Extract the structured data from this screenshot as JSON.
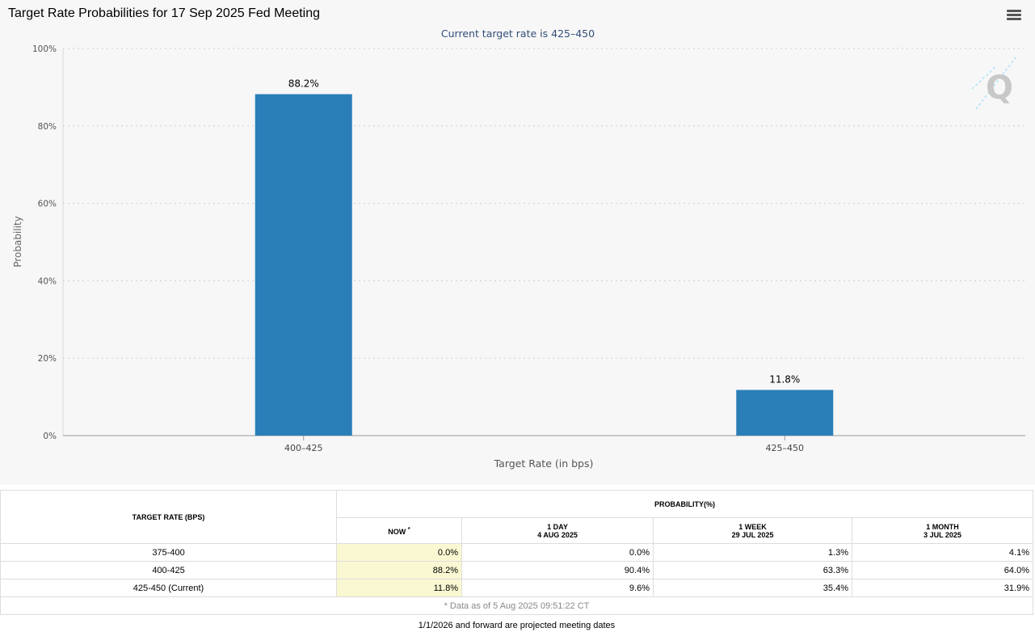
{
  "chart_title": "Target Rate Probabilities for 17 Sep 2025 Fed Meeting",
  "chart_data": {
    "type": "bar",
    "title": "Target Rate Probabilities for 17 Sep 2025 Fed Meeting",
    "subtitle": "Current target rate is 425–450",
    "categories": [
      "400–425",
      "425–450"
    ],
    "values": [
      88.2,
      11.8
    ],
    "data_labels": [
      "88.2%",
      "11.8%"
    ],
    "xlabel": "Target Rate (in bps)",
    "ylabel": "Probability",
    "ylim": [
      0,
      100
    ],
    "yticks": [
      0,
      20,
      40,
      60,
      80,
      100
    ],
    "ytick_labels": [
      "0%",
      "20%",
      "40%",
      "60%",
      "80%",
      "100%"
    ],
    "grid": true,
    "bar_color": "#2a7fb8"
  },
  "table": {
    "target_rate_header": "TARGET RATE (BPS)",
    "probability_header": "PROBABILITY(%)",
    "col_now": "NOW",
    "col_now_mark": "*",
    "col_1day": "1 DAY",
    "col_1day_date": "4 AUG 2025",
    "col_1week": "1 WEEK",
    "col_1week_date": "29 JUL 2025",
    "col_1month": "1 MONTH",
    "col_1month_date": "3 JUL 2025",
    "rows": [
      {
        "rate": "375-400",
        "now": "0.0%",
        "day": "0.0%",
        "week": "1.3%",
        "month": "4.1%"
      },
      {
        "rate": "400-425",
        "now": "88.2%",
        "day": "90.4%",
        "week": "63.3%",
        "month": "64.0%"
      },
      {
        "rate": "425-450 (Current)",
        "now": "11.8%",
        "day": "9.6%",
        "week": "35.4%",
        "month": "31.9%"
      }
    ],
    "data_note": "* Data as of 5 Aug 2025 09:51:22 CT"
  },
  "footer_note": "1/1/2026 and forward are projected meeting dates",
  "icons": {
    "menu": "hamburger-menu-icon",
    "watermark": "quikstrike-logo-icon"
  }
}
